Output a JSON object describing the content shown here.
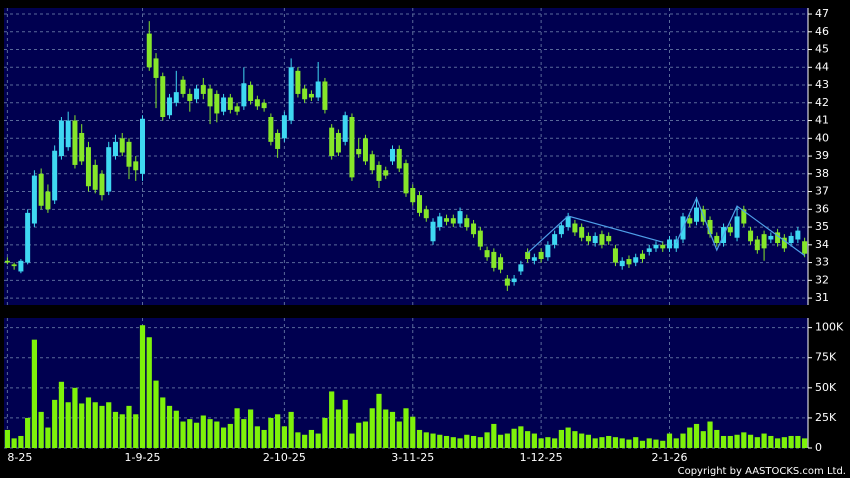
{
  "chart_data": [
    {
      "type": "candlestick",
      "categories": [
        "8-25",
        null,
        null,
        null,
        null,
        null,
        null,
        null,
        null,
        null,
        null,
        null,
        null,
        null,
        null,
        null,
        null,
        null,
        null,
        null,
        "1-9-25",
        null,
        null,
        null,
        null,
        null,
        null,
        null,
        null,
        null,
        null,
        null,
        null,
        null,
        null,
        null,
        null,
        null,
        null,
        null,
        null,
        "2-10-25",
        null,
        null,
        null,
        null,
        null,
        null,
        null,
        null,
        null,
        null,
        null,
        null,
        null,
        null,
        null,
        null,
        null,
        null,
        "3-11-25",
        null,
        null,
        null,
        null,
        null,
        null,
        null,
        null,
        null,
        null,
        null,
        null,
        null,
        null,
        null,
        null,
        null,
        null,
        "1-12-25",
        null,
        null,
        null,
        null,
        null,
        null,
        null,
        null,
        null,
        null,
        null,
        null,
        null,
        null,
        null,
        null,
        null,
        null,
        "2-1-26",
        null,
        null,
        null,
        null,
        null,
        null,
        null,
        null,
        null,
        null,
        null,
        null,
        null,
        null,
        null,
        null,
        null,
        null,
        null,
        null
      ],
      "open": [
        33.1,
        32.9,
        32.5,
        33.0,
        35.2,
        38.0,
        37.0,
        36.5,
        39.0,
        39.5,
        41.0,
        40.3,
        39.5,
        38.5,
        38.0,
        37.0,
        39.0,
        40.0,
        39.8,
        38.7,
        38.0,
        45.9,
        44.5,
        43.5,
        41.3,
        42.0,
        43.3,
        42.5,
        42.2,
        43.0,
        42.8,
        42.5,
        41.5,
        42.3,
        41.8,
        41.8,
        43.0,
        42.2,
        42.0,
        41.2,
        40.3,
        40.0,
        41.0,
        43.8,
        42.8,
        42.5,
        42.3,
        43.2,
        40.6,
        40.3,
        39.8,
        41.2,
        39.4,
        40.0,
        39.1,
        38.5,
        38.2,
        38.7,
        39.4,
        38.6,
        37.2,
        36.8,
        36.0,
        34.2,
        35.0,
        35.5,
        35.5,
        35.2,
        35.5,
        35.2,
        34.8,
        33.7,
        33.6,
        33.3,
        32.1,
        31.9,
        32.5,
        33.6,
        33.1,
        33.6,
        33.3,
        34.0,
        34.6,
        35.0,
        35.2,
        35.0,
        34.5,
        34.1,
        34.6,
        34.5,
        33.8,
        32.8,
        33.2,
        33.0,
        33.5,
        33.6,
        33.8,
        34.0,
        33.8,
        33.8,
        34.3,
        35.5,
        35.3,
        36.0,
        35.4,
        34.5,
        34.1,
        35.0,
        34.4,
        36.0,
        34.8,
        34.3,
        34.6,
        34.3,
        34.7,
        34.4,
        34.1,
        34.3,
        34.2
      ],
      "high": [
        33.3,
        33.0,
        33.2,
        36.0,
        38.2,
        38.3,
        37.4,
        39.6,
        41.2,
        41.5,
        41.3,
        40.8,
        39.8,
        38.8,
        38.2,
        39.8,
        40.2,
        40.3,
        40.0,
        39.0,
        41.3,
        46.6,
        44.8,
        43.7,
        42.5,
        43.8,
        43.5,
        42.8,
        43.0,
        43.4,
        43.0,
        42.7,
        42.5,
        42.5,
        42.0,
        44.0,
        43.2,
        42.4,
        42.2,
        41.4,
        40.5,
        41.5,
        44.5,
        44.0,
        43.0,
        42.7,
        44.3,
        43.4,
        40.8,
        40.5,
        41.5,
        41.4,
        40.0,
        40.2,
        39.3,
        38.7,
        38.4,
        39.6,
        39.6,
        38.8,
        37.4,
        37.0,
        36.2,
        35.5,
        35.8,
        35.7,
        35.7,
        36.1,
        35.7,
        35.4,
        35.0,
        33.9,
        33.8,
        33.5,
        32.3,
        32.3,
        33.1,
        33.8,
        33.5,
        33.8,
        34.2,
        34.8,
        35.3,
        35.8,
        35.4,
        35.2,
        34.7,
        34.7,
        34.8,
        34.7,
        34.0,
        33.3,
        33.4,
        33.5,
        33.7,
        34.0,
        34.2,
        34.2,
        34.5,
        34.5,
        35.8,
        35.7,
        36.7,
        36.2,
        35.6,
        34.7,
        35.2,
        35.2,
        36.2,
        36.2,
        35.0,
        34.5,
        34.8,
        34.7,
        34.9,
        34.6,
        34.7,
        35.0,
        34.4
      ],
      "low": [
        32.9,
        32.6,
        32.4,
        32.9,
        35.0,
        36.0,
        35.8,
        36.3,
        38.8,
        39.3,
        38.3,
        38.5,
        37.0,
        36.9,
        36.5,
        36.8,
        38.8,
        39.0,
        37.7,
        37.6,
        37.6,
        43.8,
        41.7,
        41.0,
        41.1,
        41.8,
        42.3,
        41.5,
        42.0,
        42.2,
        40.8,
        40.9,
        41.3,
        41.4,
        41.3,
        41.6,
        41.9,
        41.6,
        41.5,
        39.6,
        38.9,
        39.8,
        40.8,
        42.3,
        42.0,
        42.1,
        42.1,
        41.4,
        38.8,
        39.0,
        39.6,
        37.6,
        38.9,
        38.5,
        38.0,
        37.2,
        37.7,
        38.5,
        38.1,
        36.7,
        36.2,
        35.6,
        35.3,
        34.0,
        34.8,
        35.1,
        35.0,
        35.0,
        34.8,
        34.4,
        33.7,
        33.1,
        32.5,
        32.4,
        31.4,
        31.7,
        32.3,
        33.0,
        32.9,
        33.0,
        33.1,
        33.8,
        34.4,
        34.8,
        34.5,
        34.2,
        34.0,
        33.9,
        33.8,
        34.0,
        32.8,
        32.6,
        32.7,
        32.8,
        33.0,
        33.4,
        33.6,
        33.6,
        33.6,
        33.6,
        34.1,
        35.0,
        35.1,
        35.1,
        34.4,
        33.9,
        33.9,
        34.5,
        34.2,
        35.0,
        34.0,
        33.5,
        33.1,
        34.1,
        33.9,
        33.6,
        33.9,
        34.1,
        33.3
      ],
      "close": [
        33.0,
        32.8,
        33.1,
        35.8,
        37.9,
        36.2,
        36.0,
        39.3,
        41.0,
        41.0,
        38.5,
        38.7,
        37.3,
        37.1,
        36.8,
        39.5,
        39.8,
        39.2,
        38.4,
        38.2,
        41.1,
        44.0,
        43.4,
        41.2,
        42.3,
        42.6,
        42.5,
        42.1,
        42.8,
        42.5,
        41.8,
        41.4,
        42.3,
        41.6,
        41.5,
        43.1,
        42.1,
        41.8,
        41.7,
        39.8,
        39.4,
        41.3,
        44.0,
        42.5,
        42.2,
        42.3,
        43.2,
        41.6,
        39.0,
        39.2,
        41.3,
        37.8,
        39.1,
        38.7,
        38.2,
        37.6,
        37.9,
        39.4,
        38.3,
        36.9,
        36.4,
        35.8,
        35.5,
        35.3,
        35.6,
        35.3,
        35.2,
        35.9,
        35.0,
        34.6,
        33.9,
        33.3,
        32.7,
        32.6,
        31.7,
        32.1,
        32.9,
        33.2,
        33.3,
        33.2,
        34.0,
        34.6,
        35.1,
        35.6,
        34.7,
        34.4,
        34.2,
        34.5,
        34.0,
        34.2,
        33.0,
        33.1,
        32.9,
        33.3,
        33.2,
        33.8,
        34.0,
        33.8,
        34.3,
        34.3,
        35.6,
        35.2,
        36.1,
        35.3,
        34.6,
        34.1,
        35.0,
        34.7,
        35.6,
        35.2,
        34.2,
        33.7,
        33.8,
        34.5,
        34.1,
        33.8,
        34.5,
        34.8,
        33.5
      ],
      "up_color": "#3fd8f2",
      "down_color": "#86e62a",
      "ylim": [
        30.61,
        47.34
      ],
      "yticks": [
        31,
        32,
        33,
        34,
        35,
        36,
        37,
        38,
        39,
        40,
        41,
        42,
        43,
        44,
        45,
        46,
        47
      ],
      "grid": true,
      "overlays": [
        {
          "color": "#4f9fe8",
          "x": [
            77,
            83,
            97
          ],
          "y": [
            33.54,
            35.62,
            34.15
          ]
        },
        {
          "color": "#4f9fe8",
          "x": [
            99,
            102,
            105,
            108,
            118
          ],
          "y": [
            34.1,
            36.63,
            33.7,
            36.18,
            33.4
          ]
        }
      ]
    },
    {
      "type": "bar",
      "values": [
        15000,
        8000,
        10000,
        25000,
        90000,
        30000,
        17000,
        40000,
        55000,
        38000,
        50000,
        37000,
        42000,
        38000,
        35000,
        38000,
        30000,
        28000,
        35000,
        28000,
        102000,
        92000,
        56000,
        42000,
        35000,
        31000,
        22000,
        24000,
        21000,
        27000,
        24000,
        22000,
        17000,
        20000,
        33000,
        24000,
        32000,
        18000,
        15000,
        25000,
        28000,
        18000,
        30000,
        13000,
        11000,
        15000,
        12000,
        25000,
        47000,
        32000,
        40000,
        12000,
        21000,
        22000,
        33000,
        45000,
        32000,
        30000,
        22000,
        33000,
        26000,
        15000,
        13000,
        12000,
        11000,
        10000,
        9000,
        8000,
        11000,
        10000,
        9000,
        13000,
        20000,
        11000,
        12000,
        16000,
        18000,
        14000,
        12000,
        8000,
        9000,
        8000,
        15000,
        17000,
        14000,
        12000,
        11000,
        8000,
        9000,
        10000,
        9000,
        8000,
        7000,
        9000,
        6000,
        8000,
        7000,
        6000,
        12000,
        8000,
        12000,
        17000,
        20000,
        14000,
        22000,
        15000,
        10000,
        10000,
        11000,
        13000,
        11000,
        9000,
        12000,
        10000,
        8000,
        9000,
        10000,
        10000,
        8000
      ],
      "color": "#7ef20a",
      "ylim": [
        0,
        108000
      ],
      "yticks": [
        0,
        {
          "value": 25000,
          "label": "25K"
        },
        {
          "value": 50000,
          "label": "50K"
        },
        {
          "value": 75000,
          "label": "75K"
        },
        {
          "value": 100000,
          "label": "100K"
        }
      ],
      "grid": true
    }
  ],
  "copyright": "Copyright by AASTOCKS.com Ltd."
}
